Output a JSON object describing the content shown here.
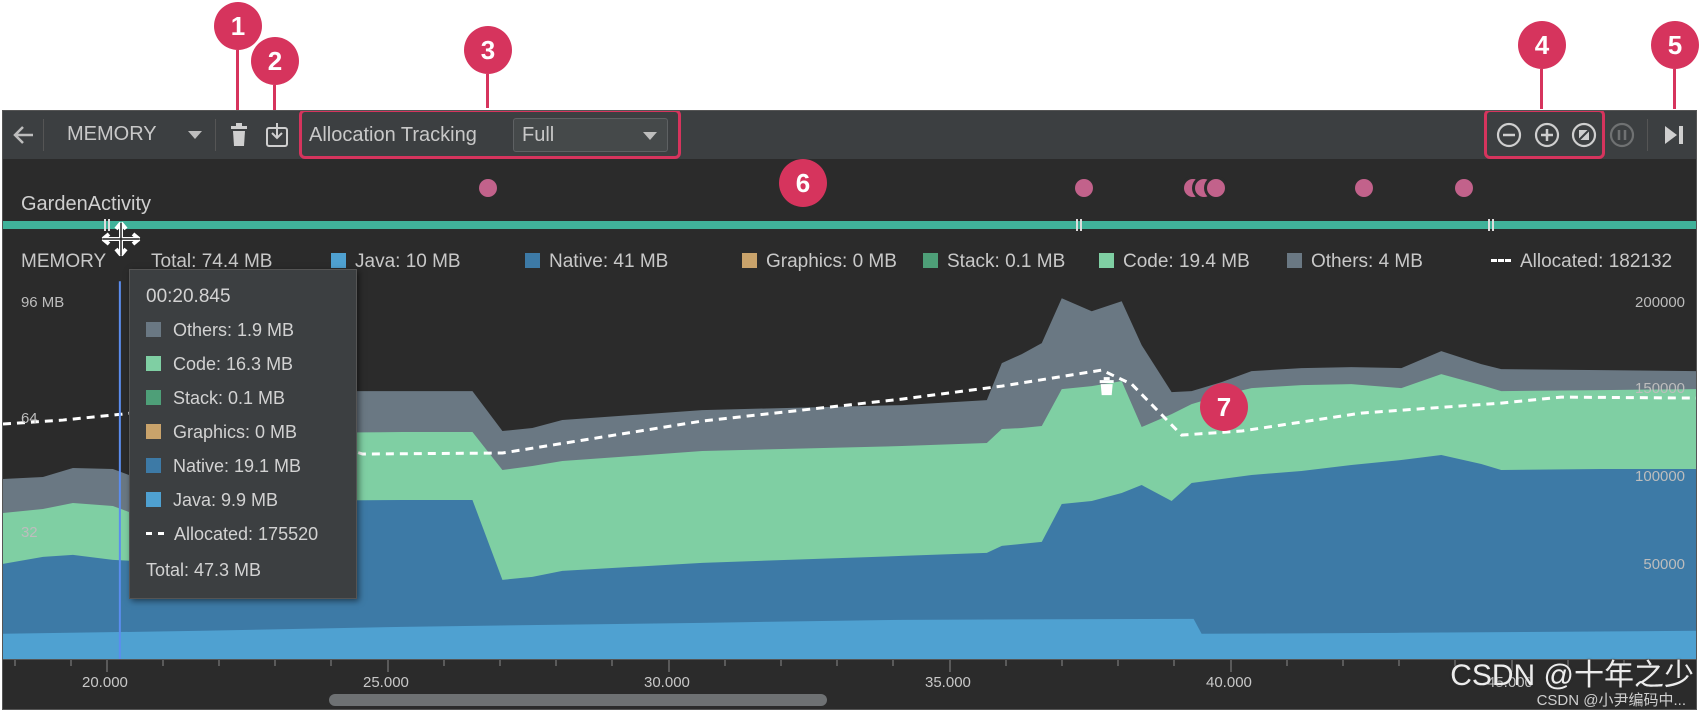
{
  "callouts": [
    "1",
    "2",
    "3",
    "4",
    "5",
    "6",
    "7"
  ],
  "toolbar": {
    "profiler_select": "MEMORY",
    "allocation_label": "Allocation Tracking",
    "allocation_value": "Full",
    "icons": [
      "back-arrow-icon",
      "trash-icon",
      "heap-dump-icon",
      "zoom-out-icon",
      "zoom-in-icon",
      "reset-zoom-icon",
      "attach-icon",
      "go-live-icon"
    ]
  },
  "activity": {
    "name": "GardenActivity"
  },
  "legend": {
    "title": "MEMORY",
    "total": "Total: 74.4 MB",
    "items": [
      {
        "label": "Java: 10 MB",
        "color": "#4fa1d1"
      },
      {
        "label": "Native: 41 MB",
        "color": "#3d7aa6"
      },
      {
        "label": "Graphics: 0 MB",
        "color": "#c9a36b"
      },
      {
        "label": "Stack: 0.1 MB",
        "color": "#4e9f78"
      },
      {
        "label": "Code: 19.4 MB",
        "color": "#7fcfa3"
      },
      {
        "label": "Others: 4 MB",
        "color": "#6a7883"
      }
    ],
    "allocated": "Allocated: 182132"
  },
  "axis": {
    "left_ticks": [
      "96 MB",
      "64",
      "32"
    ],
    "right_ticks": [
      "200000",
      "150000",
      "100000",
      "50000"
    ],
    "time_ticks": [
      "20.000",
      "25.000",
      "30.000",
      "35.000",
      "40.000",
      "45.000"
    ]
  },
  "tooltip": {
    "time": "00:20.845",
    "rows": [
      {
        "label": "Others: 1.9 MB",
        "color": "#6a7883"
      },
      {
        "label": "Code: 16.3 MB",
        "color": "#7fcfa3"
      },
      {
        "label": "Stack: 0.1 MB",
        "color": "#4e9f78"
      },
      {
        "label": "Graphics: 0 MB",
        "color": "#c9a36b"
      },
      {
        "label": "Native: 19.1 MB",
        "color": "#3d7aa6"
      },
      {
        "label": "Java: 9.9 MB",
        "color": "#4fa1d1"
      }
    ],
    "allocated": "Allocated: 175520",
    "total": "Total: 47.3 MB"
  },
  "watermark": "CSDN @十年之少",
  "watermark_small": "CSDN @小尹编码中..."
}
